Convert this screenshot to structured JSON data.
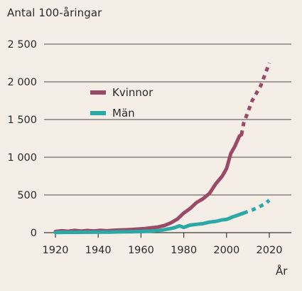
{
  "chart_data": {
    "type": "line",
    "title": "Antal 100-åringar",
    "xlabel": "År",
    "ylabel": "",
    "xlim": [
      1915,
      2030
    ],
    "ylim": [
      0,
      2500
    ],
    "x_ticks": [
      1920,
      1940,
      1960,
      1980,
      2000,
      2020
    ],
    "y_ticks": [
      0,
      500,
      1000,
      1500,
      2000,
      2500
    ],
    "y_tick_labels": [
      "0",
      "500",
      "1 000",
      "1 500",
      "2 000",
      "2 500"
    ],
    "grid": "horizontal",
    "legend_position": "upper-left",
    "series": [
      {
        "name": "Kvinnor",
        "color": "#9a4a66",
        "observed": [
          [
            1920,
            15
          ],
          [
            1923,
            25
          ],
          [
            1926,
            18
          ],
          [
            1929,
            30
          ],
          [
            1932,
            20
          ],
          [
            1935,
            28
          ],
          [
            1938,
            22
          ],
          [
            1941,
            30
          ],
          [
            1944,
            25
          ],
          [
            1947,
            30
          ],
          [
            1950,
            35
          ],
          [
            1953,
            38
          ],
          [
            1956,
            42
          ],
          [
            1959,
            48
          ],
          [
            1962,
            55
          ],
          [
            1965,
            65
          ],
          [
            1968,
            75
          ],
          [
            1971,
            95
          ],
          [
            1974,
            130
          ],
          [
            1977,
            180
          ],
          [
            1980,
            260
          ],
          [
            1983,
            320
          ],
          [
            1986,
            400
          ],
          [
            1989,
            450
          ],
          [
            1992,
            520
          ],
          [
            1995,
            650
          ],
          [
            1998,
            750
          ],
          [
            2000,
            850
          ],
          [
            2002,
            1050
          ],
          [
            2004,
            1150
          ],
          [
            2006,
            1280
          ],
          [
            2007,
            1300
          ]
        ],
        "projected": [
          [
            2008,
            1450
          ],
          [
            2010,
            1600
          ],
          [
            2012,
            1750
          ],
          [
            2014,
            1850
          ],
          [
            2016,
            1950
          ],
          [
            2018,
            2100
          ],
          [
            2020,
            2250
          ]
        ]
      },
      {
        "name": "Män",
        "color": "#2aa9a7",
        "observed": [
          [
            1920,
            3
          ],
          [
            1925,
            5
          ],
          [
            1930,
            5
          ],
          [
            1935,
            6
          ],
          [
            1940,
            8
          ],
          [
            1945,
            8
          ],
          [
            1950,
            10
          ],
          [
            1955,
            12
          ],
          [
            1960,
            15
          ],
          [
            1965,
            20
          ],
          [
            1970,
            35
          ],
          [
            1975,
            60
          ],
          [
            1978,
            90
          ],
          [
            1980,
            70
          ],
          [
            1983,
            100
          ],
          [
            1986,
            110
          ],
          [
            1989,
            120
          ],
          [
            1992,
            140
          ],
          [
            1995,
            150
          ],
          [
            1998,
            170
          ],
          [
            2000,
            175
          ],
          [
            2003,
            210
          ],
          [
            2006,
            240
          ],
          [
            2008,
            260
          ]
        ],
        "projected": [
          [
            2009,
            270
          ],
          [
            2012,
            300
          ],
          [
            2015,
            340
          ],
          [
            2018,
            380
          ],
          [
            2020,
            430
          ]
        ]
      }
    ]
  }
}
